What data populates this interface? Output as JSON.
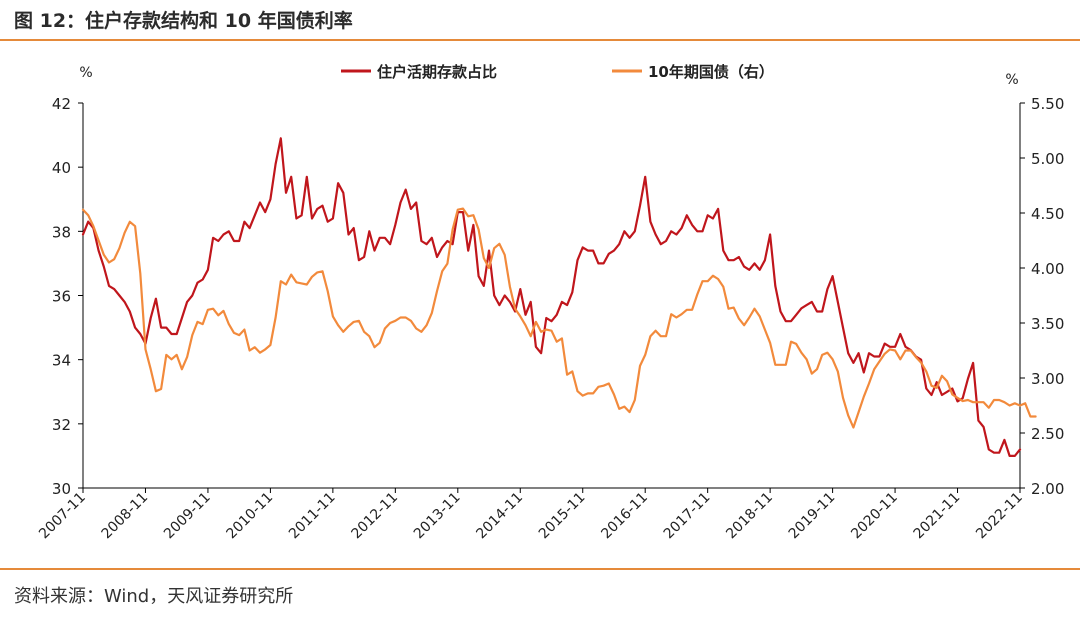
{
  "header": {
    "title": "图 12：住户存款结构和 10 年国债利率"
  },
  "footer": {
    "source": "资料来源：Wind，天风证券研究所"
  },
  "chart_data": {
    "type": "line",
    "title": "",
    "left_unit": "%",
    "right_unit": "%",
    "x_tick_labels": [
      "2007-11",
      "2008-11",
      "2009-11",
      "2010-11",
      "2011-11",
      "2012-11",
      "2013-11",
      "2014-11",
      "2015-11",
      "2016-11",
      "2017-11",
      "2018-11",
      "2019-11",
      "2020-11",
      "2021-11",
      "2022-11"
    ],
    "ylim_left": [
      30,
      42
    ],
    "yticks_left": [
      "30",
      "32",
      "34",
      "36",
      "38",
      "40",
      "42"
    ],
    "ylim_right": [
      2.0,
      5.5
    ],
    "yticks_right": [
      "2.00",
      "2.50",
      "3.00",
      "3.50",
      "4.00",
      "4.50",
      "5.00",
      "5.50"
    ],
    "grid": false,
    "legend_position": "top",
    "series": [
      {
        "name": "住户活期存款占比",
        "axis": "left",
        "color": "#c0161c",
        "x_start": "2007-11",
        "frequency": "monthly",
        "values": [
          37.9,
          38.3,
          38.1,
          37.4,
          36.9,
          36.3,
          36.2,
          36.0,
          35.8,
          35.5,
          35.0,
          34.8,
          34.5,
          35.3,
          35.9,
          35.0,
          35.0,
          34.8,
          34.8,
          35.3,
          35.8,
          36.0,
          36.4,
          36.5,
          36.8,
          37.8,
          37.7,
          37.9,
          38.0,
          37.7,
          37.7,
          38.3,
          38.1,
          38.5,
          38.9,
          38.6,
          39.0,
          40.1,
          40.9,
          39.2,
          39.7,
          38.4,
          38.5,
          39.7,
          38.4,
          38.7,
          38.8,
          38.3,
          38.4,
          39.5,
          39.2,
          37.9,
          38.1,
          37.1,
          37.2,
          38.0,
          37.4,
          37.8,
          37.8,
          37.6,
          38.2,
          38.9,
          39.3,
          38.7,
          38.9,
          37.7,
          37.6,
          37.8,
          37.2,
          37.5,
          37.7,
          37.6,
          38.6,
          38.6,
          37.4,
          38.2,
          36.6,
          36.3,
          37.4,
          36.0,
          35.7,
          36.0,
          35.8,
          35.5,
          36.2,
          35.4,
          35.8,
          34.4,
          34.2,
          35.3,
          35.2,
          35.4,
          35.8,
          35.7,
          36.1,
          37.1,
          37.5,
          37.4,
          37.4,
          37.0,
          37.0,
          37.3,
          37.4,
          37.6,
          38.0,
          37.8,
          38.0,
          38.8,
          39.7,
          38.3,
          37.9,
          37.6,
          37.7,
          38.0,
          37.9,
          38.1,
          38.5,
          38.2,
          38.0,
          38.0,
          38.5,
          38.4,
          38.7,
          37.4,
          37.1,
          37.1,
          37.2,
          36.9,
          36.8,
          37.0,
          36.8,
          37.1,
          37.9,
          36.3,
          35.5,
          35.2,
          35.2,
          35.4,
          35.6,
          35.7,
          35.8,
          35.5,
          35.5,
          36.2,
          36.6,
          35.8,
          35.0,
          34.2,
          33.9,
          34.2,
          33.6,
          34.2,
          34.1,
          34.1,
          34.5,
          34.4,
          34.4,
          34.8,
          34.4,
          34.3,
          34.1,
          34.0,
          33.1,
          32.9,
          33.3,
          32.9,
          33.0,
          33.1,
          32.7,
          32.8,
          33.4,
          33.9,
          32.1,
          31.9,
          31.2,
          31.1,
          31.1,
          31.5,
          31.0,
          31.0,
          31.2
        ]
      },
      {
        "name": "10年期国债（右）",
        "axis": "right",
        "color": "#f28a3c",
        "x_start": "2007-11",
        "frequency": "monthly",
        "values": [
          4.53,
          4.48,
          4.38,
          4.25,
          4.12,
          4.05,
          4.08,
          4.18,
          4.32,
          4.42,
          4.38,
          3.95,
          3.26,
          3.08,
          2.88,
          2.9,
          3.21,
          3.17,
          3.21,
          3.08,
          3.19,
          3.39,
          3.51,
          3.49,
          3.62,
          3.63,
          3.57,
          3.61,
          3.49,
          3.41,
          3.39,
          3.44,
          3.25,
          3.28,
          3.23,
          3.26,
          3.3,
          3.55,
          3.88,
          3.85,
          3.94,
          3.87,
          3.86,
          3.85,
          3.92,
          3.96,
          3.97,
          3.79,
          3.56,
          3.48,
          3.42,
          3.47,
          3.51,
          3.52,
          3.42,
          3.38,
          3.28,
          3.32,
          3.45,
          3.5,
          3.52,
          3.55,
          3.55,
          3.52,
          3.45,
          3.42,
          3.48,
          3.59,
          3.79,
          3.97,
          4.04,
          4.35,
          4.53,
          4.54,
          4.47,
          4.48,
          4.35,
          4.09,
          4.0,
          4.18,
          4.22,
          4.12,
          3.83,
          3.63,
          3.56,
          3.48,
          3.38,
          3.51,
          3.42,
          3.44,
          3.43,
          3.33,
          3.36,
          3.03,
          3.06,
          2.88,
          2.84,
          2.86,
          2.86,
          2.92,
          2.93,
          2.95,
          2.85,
          2.72,
          2.74,
          2.69,
          2.8,
          3.11,
          3.21,
          3.38,
          3.43,
          3.38,
          3.38,
          3.58,
          3.55,
          3.58,
          3.62,
          3.62,
          3.76,
          3.88,
          3.88,
          3.93,
          3.9,
          3.83,
          3.63,
          3.64,
          3.54,
          3.48,
          3.55,
          3.63,
          3.56,
          3.44,
          3.32,
          3.12,
          3.12,
          3.12,
          3.33,
          3.31,
          3.23,
          3.17,
          3.04,
          3.08,
          3.21,
          3.23,
          3.17,
          3.06,
          2.82,
          2.66,
          2.55,
          2.69,
          2.83,
          2.95,
          3.08,
          3.15,
          3.22,
          3.26,
          3.25,
          3.17,
          3.25,
          3.25,
          3.19,
          3.14,
          3.06,
          2.93,
          2.91,
          3.02,
          2.97,
          2.85,
          2.82,
          2.79,
          2.8,
          2.78,
          2.78,
          2.78,
          2.73,
          2.8,
          2.8,
          2.78,
          2.75,
          2.77,
          2.75,
          2.77,
          2.65,
          2.65
        ]
      }
    ]
  }
}
